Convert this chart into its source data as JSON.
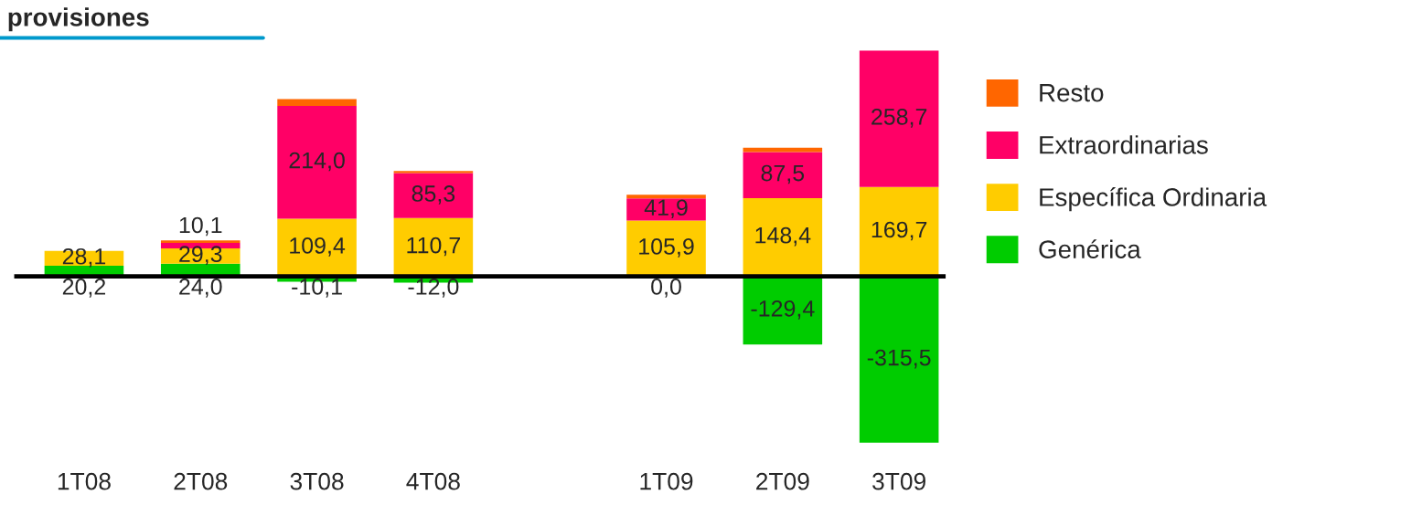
{
  "chart_data": {
    "type": "bar",
    "title": "provisiones",
    "stacked": true,
    "legend": "right",
    "grid": false,
    "categories": [
      "1T08",
      "2T08",
      "3T08",
      "4T08",
      null,
      "1T09",
      "2T09",
      "3T09"
    ],
    "series": [
      {
        "name": "Genérica",
        "color": "#00cc00",
        "values": [
          20.2,
          24.0,
          -10.1,
          -12.0,
          null,
          0.0,
          -129.4,
          -315.5
        ],
        "value_labels": [
          "20,2",
          "24,0",
          "-10,1",
          "-12,0",
          null,
          "0,0",
          "-129,4",
          "-315,5"
        ]
      },
      {
        "name": "Específica Ordinaria",
        "color": "#ffcc00",
        "values": [
          28.1,
          29.3,
          109.4,
          110.7,
          null,
          105.9,
          148.4,
          169.7
        ],
        "value_labels": [
          "28,1",
          "29,3",
          "109,4",
          "110,7",
          null,
          "105,9",
          "148,4",
          "169,7"
        ]
      },
      {
        "name": "Extraordinarias",
        "color": "#ff0066",
        "values": [
          0,
          10.1,
          214.0,
          85.3,
          null,
          41.9,
          87.5,
          258.7
        ],
        "value_labels": [
          null,
          "10,1",
          "214,0",
          "85,3",
          null,
          "41,9",
          "87,5",
          "258,7"
        ]
      },
      {
        "name": "Resto",
        "color": "#ff6600",
        "values": [
          0,
          5,
          13,
          4,
          null,
          7,
          8,
          0
        ],
        "value_labels": [
          null,
          null,
          null,
          null,
          null,
          null,
          null,
          null
        ]
      }
    ]
  }
}
